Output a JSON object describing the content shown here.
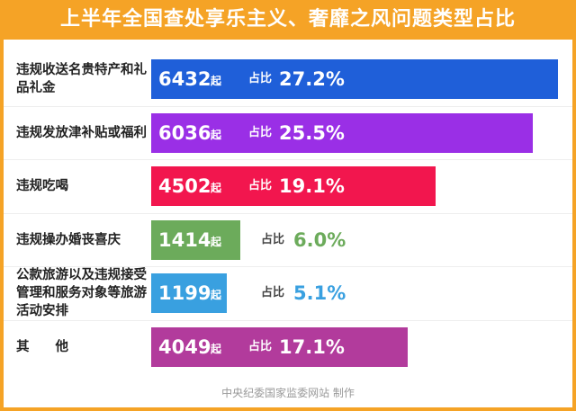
{
  "chart_data": {
    "type": "bar",
    "title": "上半年全国查处享乐主义、奢靡之风问题类型占比",
    "categories": [
      "违规收送名贵特产和礼品礼金",
      "违规发放津补贴或福利",
      "违规吃喝",
      "违规操办婚丧喜庆",
      "公款旅游以及违规接受管理和服务对象等旅游活动安排",
      "其　　他"
    ],
    "values": [
      6432,
      6036,
      4502,
      1414,
      1199,
      4049
    ],
    "unit": "起",
    "share_label": "占比",
    "shares": [
      27.2,
      25.5,
      19.1,
      6.0,
      5.1,
      17.1
    ],
    "share_labels": [
      "27.2%",
      "25.5%",
      "19.1%",
      "6.0%",
      "5.1%",
      "17.1%"
    ],
    "colors": [
      "#1f5fd9",
      "#9a2fe6",
      "#f2164e",
      "#6cab5b",
      "#39a0e0",
      "#b23b9c"
    ],
    "source": "中央纪委国家监委网站 制作"
  }
}
